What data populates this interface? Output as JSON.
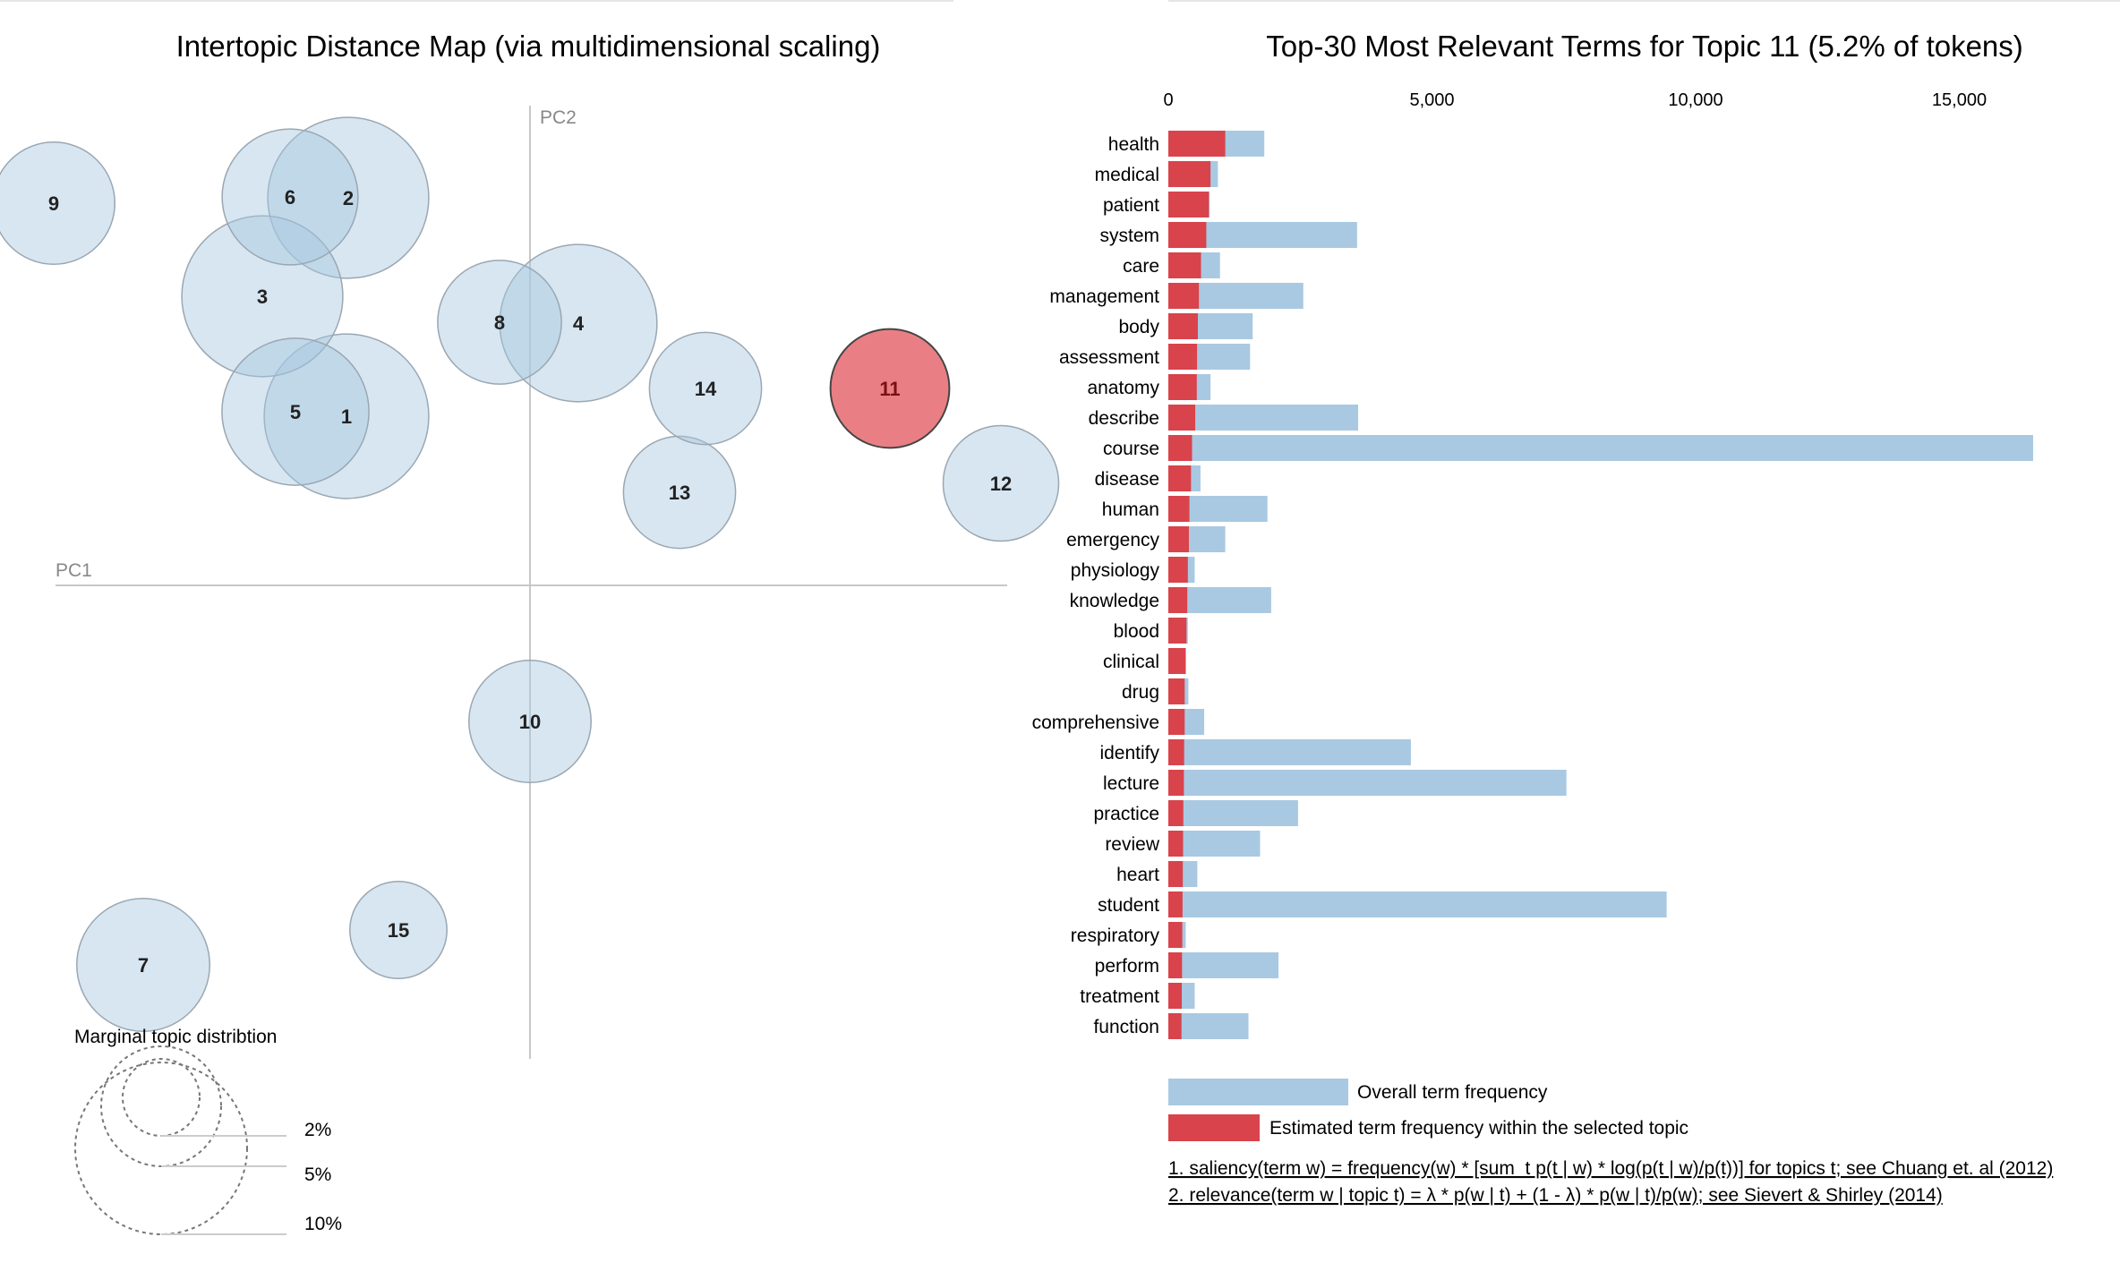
{
  "left_panel": {
    "title": "Intertopic Distance Map (via multidimensional scaling)",
    "pc1_label": "PC1",
    "pc2_label": "PC2",
    "marginal_title": "Marginal topic distribtion",
    "marginal_levels": [
      "2%",
      "5%",
      "10%"
    ]
  },
  "right_panel": {
    "title": "Top-30 Most Relevant Terms for Topic 11 (5.2% of tokens)",
    "legend_overall": "Overall term frequency",
    "legend_selected": "Estimated term frequency within the selected topic",
    "footnote_1": "1. saliency(term w) = frequency(w) * [sum_t p(t | w) * log(p(t | w)/p(t))] for topics t; see Chuang et. al (2012)",
    "footnote_2": "2. relevance(term w | topic t) = λ * p(w | t) + (1 - λ) * p(w | t)/p(w); see Sievert & Shirley (2014)"
  },
  "colors": {
    "topic_fill": "#a6c8e0",
    "selected_fill": "#e04850",
    "overall_bar": "#a9c9e2",
    "topic_bar": "#d9434b",
    "axis_line": "#c8c8c8"
  },
  "chart_data": [
    {
      "type": "scatter",
      "title": "Intertopic Distance Map (via multidimensional scaling)",
      "xlabel": "PC1",
      "ylabel": "PC2",
      "note": "bubble size = marginal topic distribution",
      "selected_topic": "11",
      "points": [
        {
          "topic": "1",
          "x": -0.205,
          "y": 0.189,
          "size": 6.9
        },
        {
          "topic": "2",
          "x": -0.203,
          "y": 0.433,
          "size": 6.6
        },
        {
          "topic": "3",
          "x": -0.299,
          "y": 0.323,
          "size": 6.6
        },
        {
          "topic": "4",
          "x": 0.054,
          "y": 0.293,
          "size": 6.3
        },
        {
          "topic": "5",
          "x": -0.262,
          "y": 0.194,
          "size": 5.5
        },
        {
          "topic": "6",
          "x": -0.268,
          "y": 0.434,
          "size": 4.7
        },
        {
          "topic": "7",
          "x": -0.432,
          "y": -0.424,
          "size": 4.5
        },
        {
          "topic": "8",
          "x": -0.034,
          "y": 0.294,
          "size": 3.9
        },
        {
          "topic": "9",
          "x": -0.532,
          "y": 0.427,
          "size": 3.8
        },
        {
          "topic": "10",
          "x": 0.0,
          "y": -0.152,
          "size": 3.8
        },
        {
          "topic": "11",
          "x": 0.402,
          "y": 0.22,
          "size": 3.6
        },
        {
          "topic": "12",
          "x": 0.526,
          "y": 0.114,
          "size": 3.4
        },
        {
          "topic": "13",
          "x": 0.167,
          "y": 0.104,
          "size": 3.2
        },
        {
          "topic": "14",
          "x": 0.196,
          "y": 0.22,
          "size": 3.2
        },
        {
          "topic": "15",
          "x": -0.147,
          "y": -0.385,
          "size": 2.4
        }
      ]
    },
    {
      "type": "bar",
      "orientation": "horizontal",
      "title": "Top-30 Most Relevant Terms for Topic 11 (5.2% of tokens)",
      "xlim": [
        0,
        16500
      ],
      "xticks": [
        0,
        5000,
        10000,
        15000
      ],
      "xtick_labels": [
        "0",
        "5,000",
        "10,000",
        "15,000"
      ],
      "categories": [
        "health",
        "medical",
        "patient",
        "system",
        "care",
        "management",
        "body",
        "assessment",
        "anatomy",
        "describe",
        "course",
        "disease",
        "human",
        "emergency",
        "physiology",
        "knowledge",
        "blood",
        "clinical",
        "drug",
        "comprehensive",
        "identify",
        "lecture",
        "practice",
        "review",
        "heart",
        "student",
        "respiratory",
        "perform",
        "treatment",
        "function"
      ],
      "series": [
        {
          "name": "Overall term frequency",
          "values": [
            1820,
            940,
            780,
            3580,
            980,
            2560,
            1600,
            1550,
            800,
            3600,
            16400,
            610,
            1880,
            1080,
            500,
            1950,
            370,
            340,
            380,
            680,
            4600,
            7550,
            2460,
            1740,
            550,
            9450,
            330,
            2090,
            500,
            1520
          ]
        },
        {
          "name": "Estimated term frequency within the selected topic",
          "values": [
            1080,
            800,
            770,
            720,
            620,
            580,
            560,
            545,
            540,
            510,
            450,
            430,
            400,
            390,
            370,
            360,
            345,
            325,
            310,
            310,
            300,
            295,
            285,
            280,
            275,
            270,
            265,
            260,
            255,
            250
          ]
        }
      ]
    }
  ]
}
